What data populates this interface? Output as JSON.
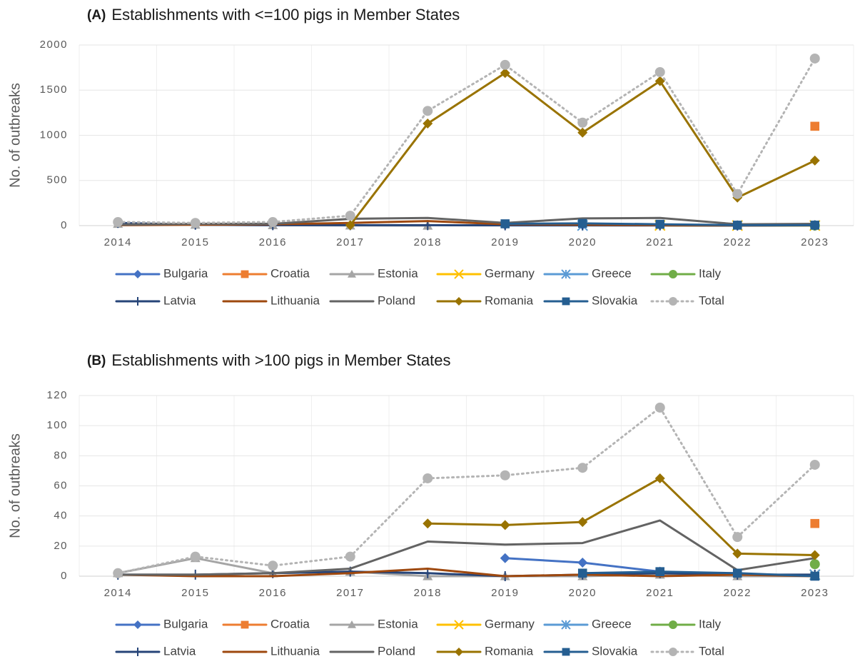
{
  "chart_data": [
    {
      "type": "line",
      "panel": "(A)",
      "title": "Establishments with <=100 pigs in Member States",
      "y_label": "No. of outbreaks",
      "categories": [
        "2014",
        "2015",
        "2016",
        "2017",
        "2018",
        "2019",
        "2020",
        "2021",
        "2022",
        "2023"
      ],
      "ylim": [
        0,
        2000
      ],
      "yticks": [
        0,
        500,
        1000,
        1500,
        2000
      ],
      "grid": true,
      "series": [
        {
          "name": "Bulgaria",
          "color": "#4472c4",
          "marker": "diamond",
          "values": [
            null,
            null,
            null,
            null,
            null,
            10,
            8,
            5,
            2,
            3
          ]
        },
        {
          "name": "Croatia",
          "color": "#ed7d31",
          "marker": "square",
          "values": [
            null,
            null,
            null,
            null,
            null,
            null,
            null,
            null,
            null,
            1100
          ]
        },
        {
          "name": "Estonia",
          "color": "#a5a5a5",
          "marker": "triangle",
          "values": [
            20,
            10,
            5,
            2,
            0,
            null,
            null,
            null,
            null,
            null
          ]
        },
        {
          "name": "Germany",
          "color": "#ffc000",
          "marker": "x",
          "values": [
            null,
            null,
            null,
            null,
            null,
            null,
            null,
            2,
            1,
            1
          ]
        },
        {
          "name": "Greece",
          "color": "#5b9bd5",
          "marker": "star",
          "values": [
            null,
            null,
            null,
            null,
            null,
            null,
            1,
            null,
            null,
            null
          ]
        },
        {
          "name": "Italy",
          "color": "#70ad47",
          "marker": "circle",
          "values": [
            null,
            null,
            null,
            null,
            null,
            null,
            null,
            null,
            null,
            1
          ]
        },
        {
          "name": "Latvia",
          "color": "#264478",
          "marker": "plus",
          "values": [
            30,
            10,
            5,
            5,
            5,
            3,
            3,
            2,
            1,
            3
          ]
        },
        {
          "name": "Lithuania",
          "color": "#9e480e",
          "marker": "none",
          "values": [
            5,
            10,
            15,
            30,
            50,
            15,
            10,
            5,
            2,
            5
          ]
        },
        {
          "name": "Poland",
          "color": "#636363",
          "marker": "none",
          "values": [
            10,
            20,
            20,
            75,
            85,
            30,
            80,
            85,
            15,
            20
          ]
        },
        {
          "name": "Romania",
          "color": "#997300",
          "marker": "diamond",
          "values": [
            null,
            null,
            null,
            5,
            1130,
            1690,
            1030,
            1600,
            310,
            720
          ]
        },
        {
          "name": "Slovakia",
          "color": "#255e91",
          "marker": "square",
          "values": [
            null,
            null,
            null,
            null,
            null,
            20,
            25,
            15,
            5,
            5
          ]
        },
        {
          "name": "Total",
          "color": "#b4b4b4",
          "marker": "circle",
          "dash": true,
          "values": [
            40,
            30,
            40,
            110,
            1270,
            1780,
            1140,
            1700,
            350,
            1850
          ]
        }
      ]
    },
    {
      "type": "line",
      "panel": "(B)",
      "title": "Establishments with >100 pigs in Member States",
      "y_label": "No. of outbreaks",
      "categories": [
        "2014",
        "2015",
        "2016",
        "2017",
        "2018",
        "2019",
        "2020",
        "2021",
        "2022",
        "2023"
      ],
      "ylim": [
        0,
        120
      ],
      "yticks": [
        0,
        20,
        40,
        60,
        80,
        100,
        120
      ],
      "grid": true,
      "series": [
        {
          "name": "Bulgaria",
          "color": "#4472c4",
          "marker": "diamond",
          "values": [
            null,
            null,
            null,
            null,
            null,
            12,
            9,
            3,
            null,
            null
          ]
        },
        {
          "name": "Croatia",
          "color": "#ed7d31",
          "marker": "square",
          "values": [
            null,
            null,
            null,
            null,
            null,
            null,
            null,
            null,
            null,
            35
          ]
        },
        {
          "name": "Estonia",
          "color": "#a5a5a5",
          "marker": "triangle",
          "values": [
            2,
            12,
            2,
            3,
            0,
            0,
            0,
            1,
            0,
            0
          ]
        },
        {
          "name": "Germany",
          "color": "#ffc000",
          "marker": "x",
          "values": [
            null,
            null,
            null,
            null,
            null,
            null,
            null,
            null,
            null,
            1
          ]
        },
        {
          "name": "Greece",
          "color": "#5b9bd5",
          "marker": "star",
          "values": [
            null,
            null,
            null,
            null,
            null,
            null,
            null,
            null,
            null,
            1
          ]
        },
        {
          "name": "Italy",
          "color": "#70ad47",
          "marker": "circle",
          "values": [
            null,
            null,
            null,
            null,
            null,
            null,
            null,
            null,
            null,
            8
          ]
        },
        {
          "name": "Latvia",
          "color": "#264478",
          "marker": "plus",
          "values": [
            1,
            1,
            2,
            3,
            2,
            0,
            1,
            2,
            1,
            1
          ]
        },
        {
          "name": "Lithuania",
          "color": "#9e480e",
          "marker": "none",
          "values": [
            1,
            0,
            0,
            2,
            5,
            0,
            1,
            0,
            1,
            0
          ]
        },
        {
          "name": "Poland",
          "color": "#636363",
          "marker": "none",
          "values": [
            1,
            1,
            2,
            5,
            23,
            21,
            22,
            37,
            4,
            12
          ]
        },
        {
          "name": "Romania",
          "color": "#997300",
          "marker": "diamond",
          "values": [
            null,
            null,
            null,
            null,
            35,
            34,
            36,
            65,
            15,
            14
          ]
        },
        {
          "name": "Slovakia",
          "color": "#255e91",
          "marker": "square",
          "values": [
            null,
            null,
            null,
            null,
            null,
            null,
            2,
            3,
            2,
            0
          ]
        },
        {
          "name": "Total",
          "color": "#b4b4b4",
          "marker": "circle",
          "dash": true,
          "values": [
            2,
            13,
            7,
            13,
            65,
            67,
            72,
            112,
            26,
            74
          ]
        }
      ]
    }
  ]
}
